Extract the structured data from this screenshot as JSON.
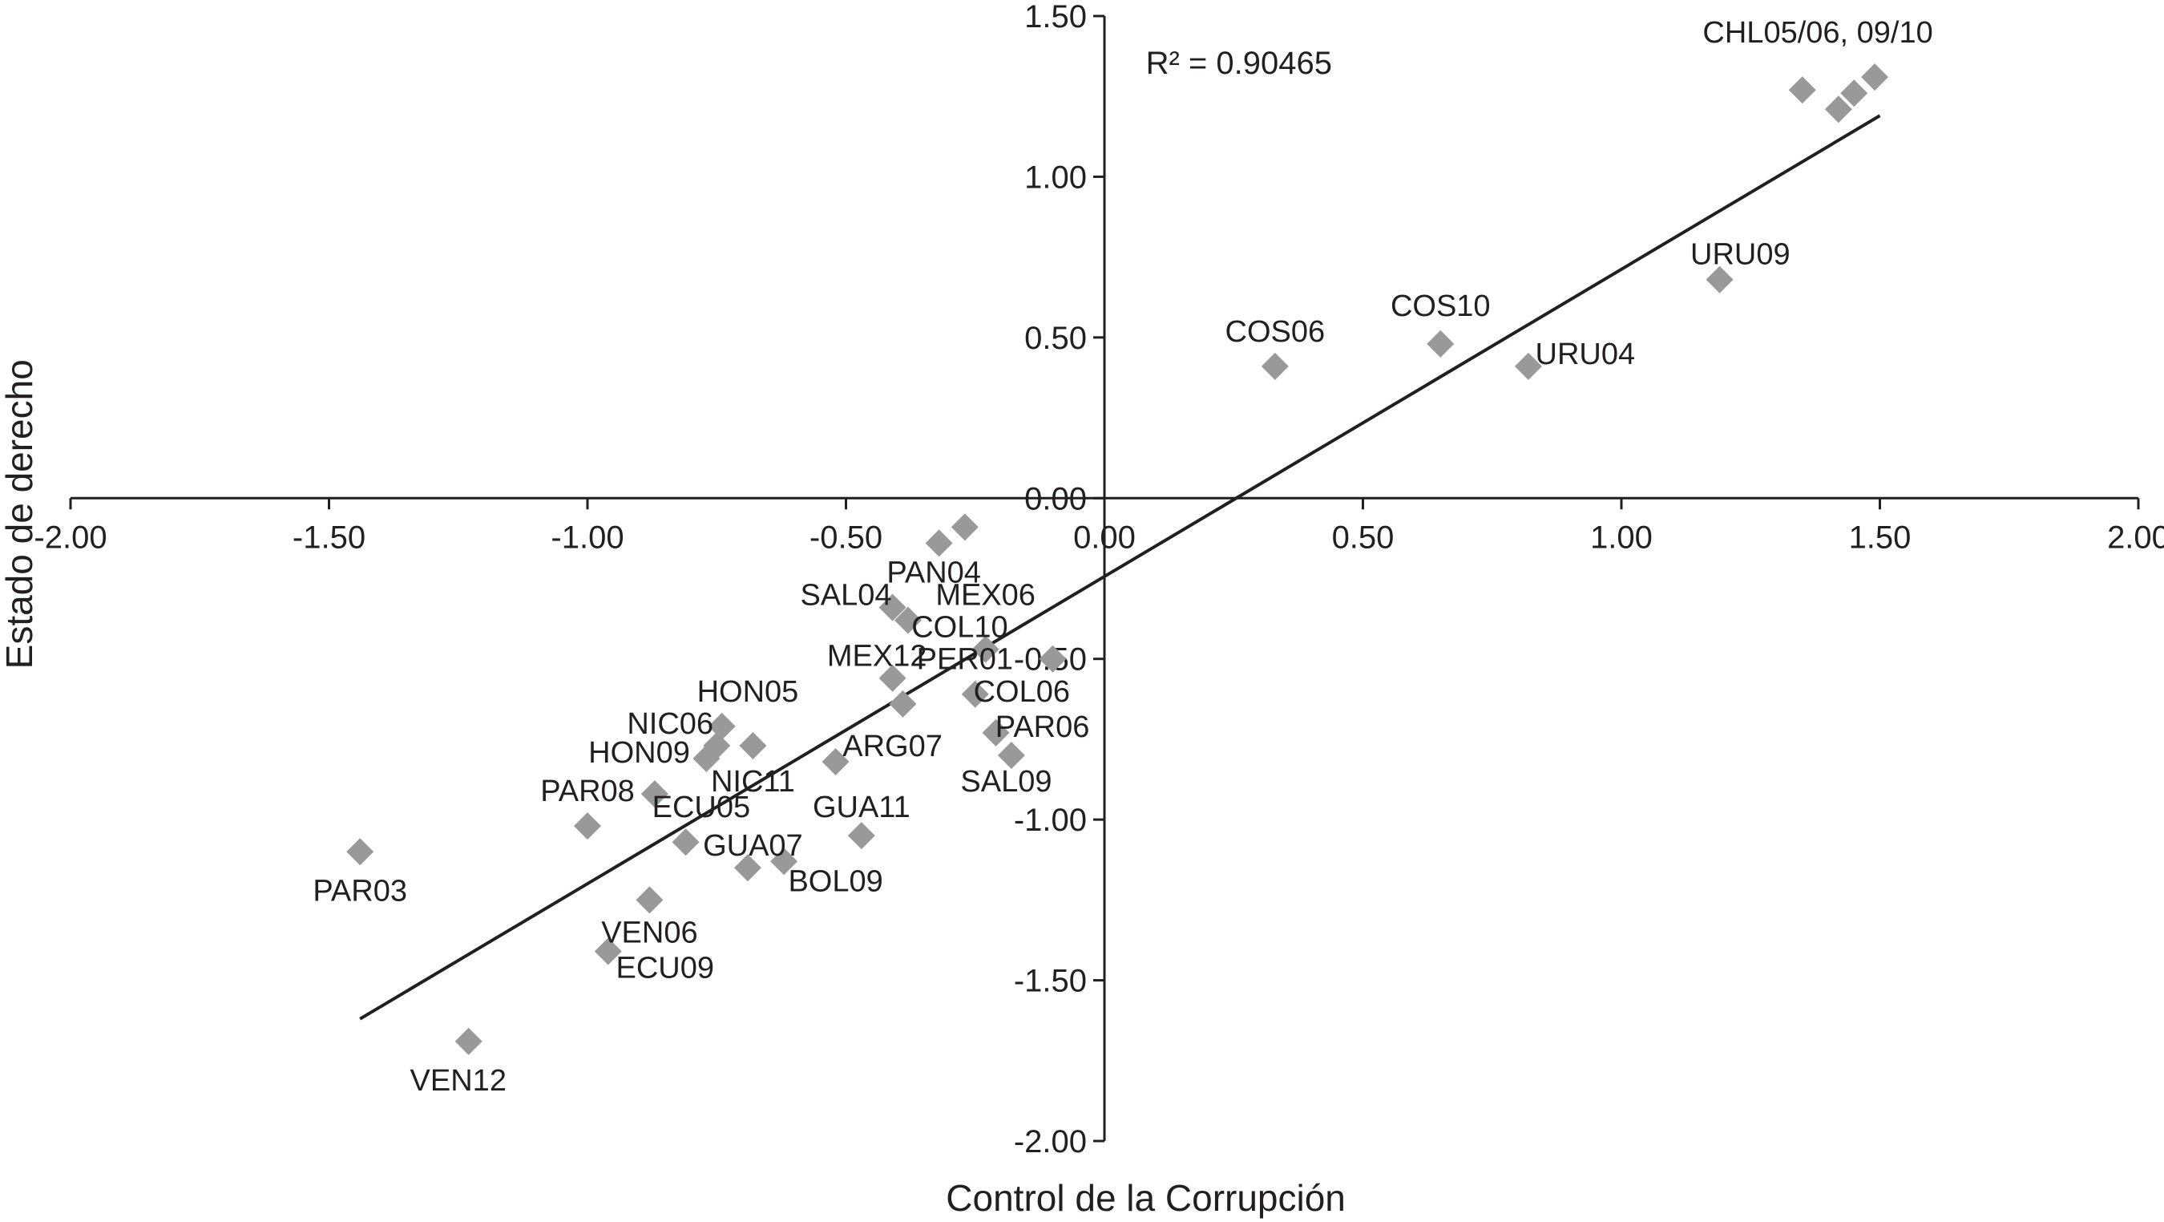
{
  "chart_data": {
    "type": "scatter",
    "title": "",
    "xlabel": "Control de la Corrupción",
    "ylabel": "Estado de derecho",
    "xlim": [
      -2.0,
      2.0
    ],
    "ylim": [
      -2.0,
      1.5
    ],
    "x_ticks": [
      "-2.00",
      "-1.50",
      "-1.00",
      "-0.50",
      "0.00",
      "0.50",
      "1.00",
      "1.50",
      "2.00"
    ],
    "y_ticks": [
      "1.50",
      "1.00",
      "0.50",
      "0.00",
      "-0.50",
      "-1.00",
      "-1.50",
      "-2.00"
    ],
    "r2_label": "R² = 0.90465",
    "marker_color": "#999999",
    "trendline": {
      "x": [
        -1.44,
        1.5
      ],
      "y": [
        -1.62,
        1.19
      ]
    },
    "points": [
      {
        "x": -1.44,
        "y": -1.1
      },
      {
        "x": -1.23,
        "y": -1.69
      },
      {
        "x": -1.0,
        "y": -1.02
      },
      {
        "x": -0.96,
        "y": -1.41
      },
      {
        "x": -0.88,
        "y": -1.25
      },
      {
        "x": -0.87,
        "y": -0.92
      },
      {
        "x": -0.81,
        "y": -1.07
      },
      {
        "x": -0.77,
        "y": -0.81
      },
      {
        "x": -0.75,
        "y": -0.77
      },
      {
        "x": -0.74,
        "y": -0.71
      },
      {
        "x": -0.68,
        "y": -0.77
      },
      {
        "x": -0.69,
        "y": -1.15
      },
      {
        "x": -0.62,
        "y": -1.13
      },
      {
        "x": -0.52,
        "y": -0.82
      },
      {
        "x": -0.47,
        "y": -1.05
      },
      {
        "x": -0.41,
        "y": -0.56
      },
      {
        "x": -0.39,
        "y": -0.64
      },
      {
        "x": -0.41,
        "y": -0.34
      },
      {
        "x": -0.38,
        "y": -0.38
      },
      {
        "x": -0.32,
        "y": -0.14
      },
      {
        "x": -0.27,
        "y": -0.09
      },
      {
        "x": -0.23,
        "y": -0.47
      },
      {
        "x": -0.25,
        "y": -0.61
      },
      {
        "x": -0.21,
        "y": -0.73
      },
      {
        "x": -0.18,
        "y": -0.8
      },
      {
        "x": -0.1,
        "y": -0.5
      },
      {
        "x": 0.33,
        "y": 0.41
      },
      {
        "x": 0.65,
        "y": 0.48
      },
      {
        "x": 0.82,
        "y": 0.41
      },
      {
        "x": 1.19,
        "y": 0.68
      },
      {
        "x": 1.35,
        "y": 1.27
      },
      {
        "x": 1.42,
        "y": 1.21
      },
      {
        "x": 1.45,
        "y": 1.26
      },
      {
        "x": 1.49,
        "y": 1.31
      }
    ],
    "labels": [
      {
        "text": "PAR03",
        "x": -1.44,
        "y": -1.22
      },
      {
        "text": "VEN12",
        "x": -1.25,
        "y": -1.81
      },
      {
        "text": "PAR08",
        "x": -1.0,
        "y": -0.91
      },
      {
        "text": "HON09",
        "x": -0.9,
        "y": -0.79
      },
      {
        "text": "NIC06",
        "x": -0.84,
        "y": -0.7
      },
      {
        "text": "HON05",
        "x": -0.69,
        "y": -0.6
      },
      {
        "text": "ECU05",
        "x": -0.78,
        "y": -0.96
      },
      {
        "text": "NIC11",
        "x": -0.68,
        "y": -0.88
      },
      {
        "text": "GUA07",
        "x": -0.68,
        "y": -1.08
      },
      {
        "text": "BOL09",
        "x": -0.52,
        "y": -1.19
      },
      {
        "text": "GUA11",
        "x": -0.47,
        "y": -0.96
      },
      {
        "text": "ARG07",
        "x": -0.41,
        "y": -0.77
      },
      {
        "text": "VEN06",
        "x": -0.88,
        "y": -1.35
      },
      {
        "text": "ECU09",
        "x": -0.85,
        "y": -1.46
      },
      {
        "text": "MEX12",
        "x": -0.44,
        "y": -0.49
      },
      {
        "text": "SAL04",
        "x": -0.5,
        "y": -0.3
      },
      {
        "text": "PAN04",
        "x": -0.33,
        "y": -0.23
      },
      {
        "text": "MEX06",
        "x": -0.23,
        "y": -0.3
      },
      {
        "text": "COL10",
        "x": -0.28,
        "y": -0.4
      },
      {
        "text": "PER01",
        "x": -0.27,
        "y": -0.5
      },
      {
        "text": "COL06",
        "x": -0.16,
        "y": -0.6
      },
      {
        "text": "PAR06",
        "x": -0.12,
        "y": -0.71
      },
      {
        "text": "SAL09",
        "x": -0.19,
        "y": -0.88
      },
      {
        "text": "COS06",
        "x": 0.33,
        "y": 0.52
      },
      {
        "text": "COS10",
        "x": 0.65,
        "y": 0.6
      },
      {
        "text": "URU04",
        "x": 0.93,
        "y": 0.45
      },
      {
        "text": "URU09",
        "x": 1.23,
        "y": 0.76
      },
      {
        "text": "CHL05/06, 09/10",
        "x": 1.38,
        "y": 1.45
      }
    ]
  }
}
